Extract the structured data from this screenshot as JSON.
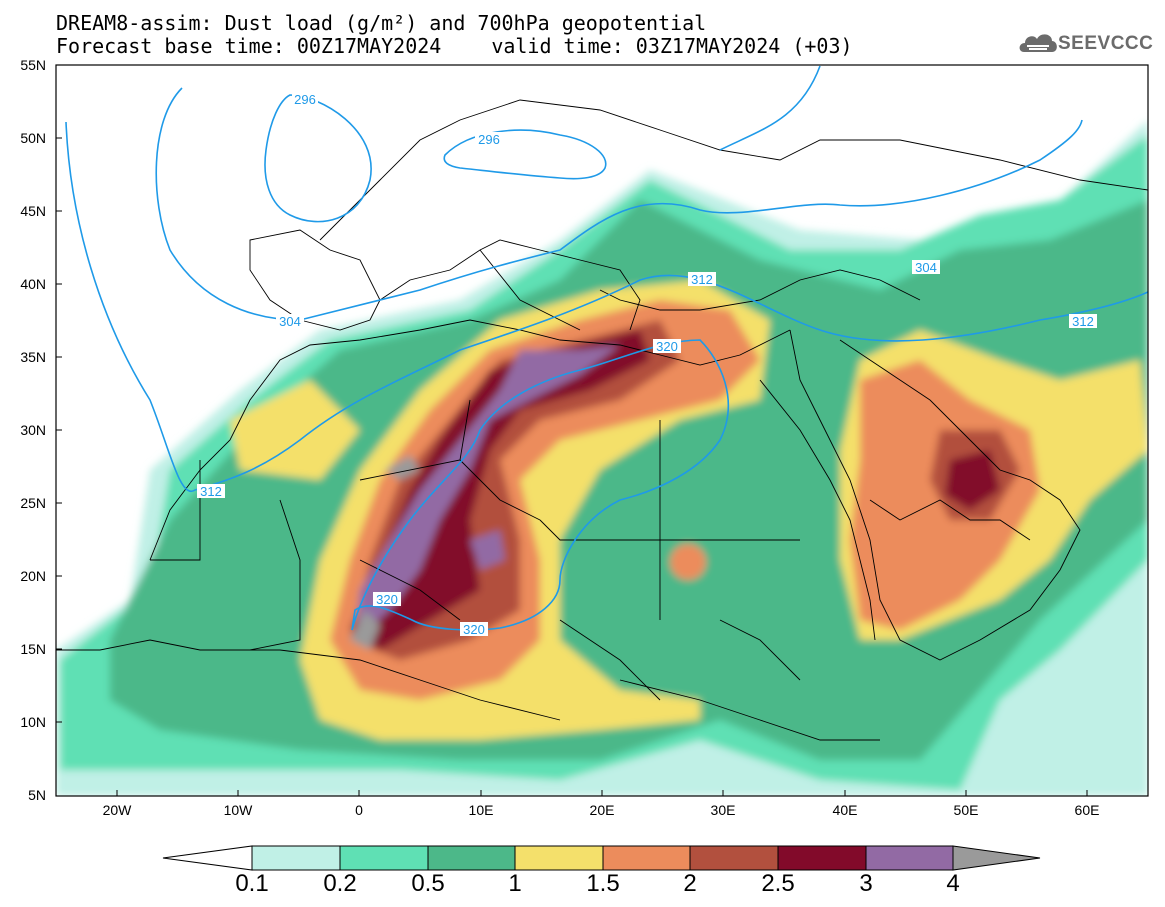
{
  "title": {
    "line1": "DREAM8-assim: Dust load (g/m²) and 700hPa geopotential",
    "base_time": "Forecast base time: 00Z17MAY2024",
    "valid_time": "valid time: 03Z17MAY2024 (+03)"
  },
  "logo": {
    "icon": "cloud-logo-icon",
    "text": "SEEVCCC"
  },
  "map": {
    "lon_range": [
      -25,
      65
    ],
    "lat_range": [
      5,
      55
    ],
    "y_ticks": [
      "55N",
      "50N",
      "45N",
      "40N",
      "35N",
      "30N",
      "25N",
      "20N",
      "15N",
      "10N",
      "5N"
    ],
    "x_ticks": [
      "20W",
      "10W",
      "0",
      "10E",
      "20E",
      "30E",
      "40E",
      "50E",
      "60E"
    ],
    "contour_labels": [
      "296",
      "296",
      "304",
      "304",
      "312",
      "312",
      "312",
      "320",
      "320",
      "320"
    ]
  },
  "colorbar": {
    "labels": [
      "0.1",
      "0.2",
      "0.5",
      "1",
      "1.5",
      "2",
      "2.5",
      "3",
      "4"
    ],
    "colors": [
      "#ffffff",
      "#c0f0e6",
      "#5fe0b4",
      "#4cb889",
      "#f4e06b",
      "#ec8c5c",
      "#b2503e",
      "#820a2a",
      "#926aa4",
      "#9a9a9a"
    ]
  },
  "colors": {
    "geopotential_contour": "#1f9ae8",
    "land_outline": "#000000"
  }
}
